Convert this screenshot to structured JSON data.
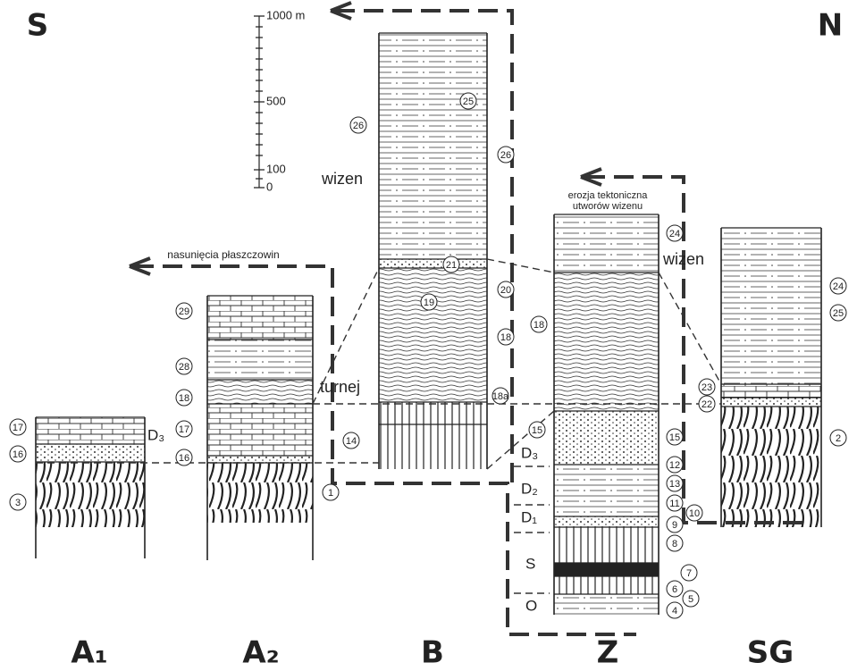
{
  "directions": {
    "south": "S",
    "north": "N"
  },
  "scale": {
    "labels": [
      "1000 m",
      "500",
      "100",
      "0"
    ]
  },
  "annotations": {
    "wizen_b": "wizen",
    "wizen_z": "wizen",
    "overthrust": "nasunięcia płaszczowin",
    "turnej": "turnej",
    "erosion": [
      "erozja tektoniczna",
      "utworów wizenu"
    ]
  },
  "stratigraphy": {
    "a1_d3": "D₃",
    "z_d3": "D₃",
    "z_d2": "D₂",
    "z_d1": "D₁",
    "z_s": "S",
    "z_o": "O"
  },
  "columns": [
    "A₁",
    "A₂",
    "B",
    "Z",
    "SG"
  ],
  "circled_labels": [
    "17",
    "16",
    "3",
    "29",
    "28",
    "18",
    "17",
    "16",
    "1",
    "14",
    "26",
    "25",
    "26",
    "21",
    "20",
    "19",
    "18",
    "18a",
    "24",
    "18",
    "15",
    "15",
    "12",
    "13",
    "11",
    "10",
    "9",
    "8",
    "7",
    "6",
    "5",
    "4",
    "24",
    "25",
    "23",
    "22",
    "2"
  ]
}
